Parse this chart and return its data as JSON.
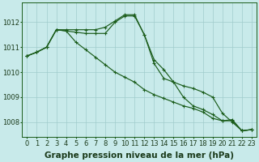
{
  "bg_color": "#c8eaea",
  "line_color": "#1a5c1a",
  "grid_color": "#a0cccc",
  "xlabel": "Graphe pression niveau de la mer (hPa)",
  "xlabel_fontsize": 7.5,
  "tick_fontsize": 6,
  "ylim": [
    1007.4,
    1012.8
  ],
  "xlim": [
    -0.5,
    23.5
  ],
  "yticks": [
    1008,
    1009,
    1010,
    1011,
    1012
  ],
  "xticks": [
    0,
    1,
    2,
    3,
    4,
    5,
    6,
    7,
    8,
    9,
    10,
    11,
    12,
    13,
    14,
    15,
    16,
    17,
    18,
    19,
    20,
    21,
    22,
    23
  ],
  "line1": [
    1010.65,
    1010.8,
    1011.0,
    1011.7,
    1011.7,
    1011.7,
    1011.7,
    1011.7,
    1011.8,
    1012.05,
    1012.3,
    1012.3,
    1011.5,
    1010.5,
    1010.1,
    1009.6,
    1009.0,
    1008.65,
    1008.5,
    1008.3,
    1008.05,
    1008.1,
    1007.65,
    1007.7
  ],
  "line2": [
    1010.65,
    1010.8,
    1011.0,
    1011.7,
    1011.65,
    1011.2,
    1010.9,
    1010.6,
    1010.3,
    1010.0,
    1009.8,
    1009.6,
    1009.3,
    1009.1,
    1008.95,
    1008.8,
    1008.65,
    1008.55,
    1008.4,
    1008.15,
    1008.05,
    1008.05,
    1007.65,
    1007.7
  ],
  "line3": [
    1010.65,
    1010.8,
    1011.0,
    1011.7,
    1011.65,
    1011.6,
    1011.55,
    1011.55,
    1011.55,
    1012.0,
    1012.25,
    1012.25,
    1011.5,
    1010.35,
    1009.75,
    1009.6,
    1009.45,
    1009.35,
    1009.2,
    1009.0,
    1008.35,
    1008.0,
    1007.65,
    1007.7
  ]
}
